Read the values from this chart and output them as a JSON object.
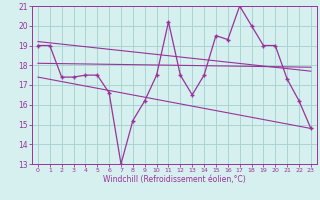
{
  "xlabel": "Windchill (Refroidissement éolien,°C)",
  "xlim": [
    -0.5,
    23.5
  ],
  "ylim": [
    13,
    21
  ],
  "yticks": [
    13,
    14,
    15,
    16,
    17,
    18,
    19,
    20,
    21
  ],
  "xticks": [
    0,
    1,
    2,
    3,
    4,
    5,
    6,
    7,
    8,
    9,
    10,
    11,
    12,
    13,
    14,
    15,
    16,
    17,
    18,
    19,
    20,
    21,
    22,
    23
  ],
  "background_color": "#d6efef",
  "grid_color": "#aad4d4",
  "line_color": "#993399",
  "series1_x": [
    0,
    1,
    2,
    3,
    4,
    5,
    6,
    7,
    8,
    9,
    10,
    11,
    12,
    13,
    14,
    15,
    16,
    17,
    18,
    19,
    20,
    21,
    22,
    23
  ],
  "series1_y": [
    19.0,
    19.0,
    17.4,
    17.4,
    17.5,
    17.5,
    16.6,
    13.0,
    15.2,
    16.2,
    17.5,
    20.2,
    17.5,
    16.5,
    17.5,
    19.5,
    19.3,
    21.0,
    20.0,
    19.0,
    19.0,
    17.3,
    16.2,
    14.8
  ],
  "trend1_x": [
    0,
    23
  ],
  "trend1_y": [
    19.2,
    17.7
  ],
  "trend2_x": [
    0,
    23
  ],
  "trend2_y": [
    17.4,
    14.8
  ],
  "trend3_x": [
    0,
    23
  ],
  "trend3_y": [
    18.1,
    17.9
  ]
}
